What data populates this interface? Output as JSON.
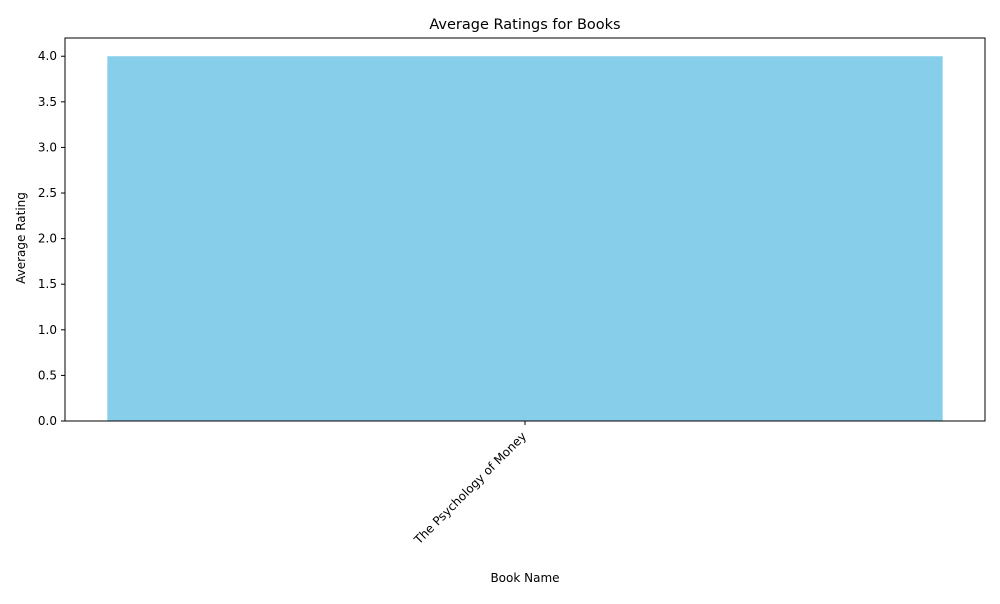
{
  "chart_data": {
    "type": "bar",
    "title": "Average Ratings for Books",
    "xlabel": "Book Name",
    "ylabel": "Average Rating",
    "categories": [
      "The Psychology of Money"
    ],
    "values": [
      4.0
    ],
    "ylim": [
      0,
      4.2
    ],
    "yticks": [
      "0.0",
      "0.5",
      "1.0",
      "1.5",
      "2.0",
      "2.5",
      "3.0",
      "3.5",
      "4.0"
    ],
    "bar_color": "#87ceeb",
    "grid": false,
    "legend": "none"
  }
}
